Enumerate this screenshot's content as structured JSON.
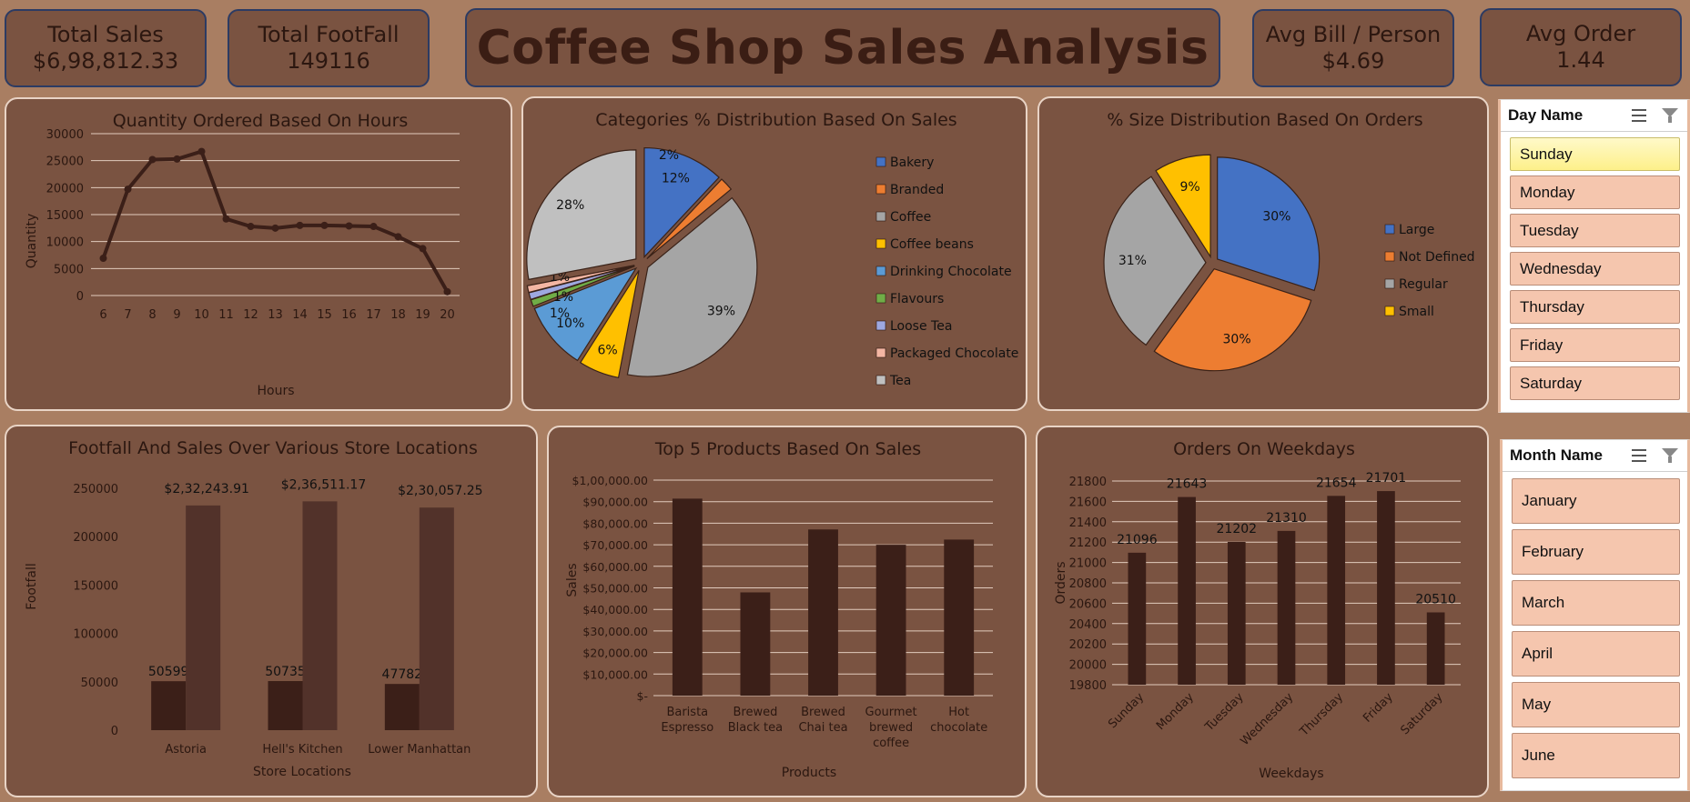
{
  "dashboard_title": "Coffee Shop Sales Analysis",
  "kpis": {
    "total_sales": {
      "label": "Total Sales",
      "value": "$6,98,812.33"
    },
    "total_footfall": {
      "label": "Total FootFall",
      "value": "149116"
    },
    "avg_bill": {
      "label": "Avg Bill / Person",
      "value": "$4.69"
    },
    "avg_order": {
      "label": "Avg Order",
      "value": "1.44"
    }
  },
  "colors": {
    "card_bg": "#7a5341",
    "dark_bar": "#3b1f18",
    "light_bar": "#52322a",
    "line": "#3b1f18",
    "pie": [
      "#4472c4",
      "#ed7d31",
      "#a5a5a5",
      "#ffc000",
      "#5b9bd5",
      "#70ad47",
      "#9ea8e0",
      "#f4b6a3",
      "#c0c0c0"
    ]
  },
  "chart_data": [
    {
      "id": "hours",
      "type": "line",
      "title": "Quantity Ordered Based On Hours",
      "xlabel": "Hours",
      "ylabel": "Quantity",
      "x": [
        6,
        7,
        8,
        9,
        10,
        11,
        12,
        13,
        14,
        15,
        16,
        17,
        18,
        19,
        20
      ],
      "values": [
        6900,
        19700,
        25200,
        25300,
        26700,
        14200,
        12800,
        12500,
        13000,
        13000,
        12900,
        12800,
        10900,
        8700,
        700
      ],
      "ylim": [
        0,
        30000
      ],
      "yticks": [
        "0",
        "5000",
        "10000",
        "15000",
        "20000",
        "25000",
        "30000"
      ],
      "grid": true
    },
    {
      "id": "categories",
      "type": "pie",
      "title": "Categories % Distribution Based On Sales",
      "categories": [
        "Bakery",
        "Branded",
        "Coffee",
        "Coffee beans",
        "Drinking Chocolate",
        "Flavours",
        "Loose Tea",
        "Packaged Chocolate",
        "Tea"
      ],
      "values": [
        12,
        2,
        39,
        6,
        10,
        1,
        1,
        1,
        28
      ],
      "labels": [
        "12%",
        "2%",
        "39%",
        "6%",
        "10%",
        "1%",
        "1%",
        "1%",
        "28%"
      ],
      "legend": "right"
    },
    {
      "id": "sizes",
      "type": "pie",
      "title": "% Size Distribution Based On Orders",
      "categories": [
        "Large",
        "Not Defined",
        "Regular",
        "Small"
      ],
      "values": [
        30,
        30,
        31,
        9
      ],
      "labels": [
        "30%",
        "30%",
        "31%",
        "9%"
      ],
      "legend": "right"
    },
    {
      "id": "locations",
      "type": "bar",
      "title": "Footfall And Sales Over Various Store Locations",
      "xlabel": "Store Locations",
      "ylabel": "Footfall",
      "categories": [
        "Astoria",
        "Hell's Kitchen",
        "Lower Manhattan"
      ],
      "series": [
        {
          "values": [
            50599,
            50735,
            47782
          ],
          "labels": [
            "50599",
            "50735",
            "47782"
          ]
        },
        {
          "values": [
            232243.91,
            236511.17,
            230057.25
          ],
          "labels": [
            "$2,32,243.91",
            "$2,36,511.17",
            "$2,30,057.25"
          ]
        }
      ],
      "ylim": [
        0,
        250000
      ],
      "yticks": [
        "0",
        "50000",
        "100000",
        "150000",
        "200000",
        "250000"
      ]
    },
    {
      "id": "products",
      "type": "bar",
      "title": "Top 5 Products Based On Sales",
      "xlabel": "Products",
      "ylabel": "Sales",
      "categories": [
        [
          "Barista",
          "Espresso"
        ],
        [
          "Brewed",
          "Black tea"
        ],
        [
          "Brewed",
          "Chai tea"
        ],
        [
          "Gourmet",
          "brewed",
          "coffee"
        ],
        [
          "Hot",
          "chocolate"
        ]
      ],
      "values": [
        91400,
        47900,
        77100,
        70000,
        72400
      ],
      "ylim": [
        0,
        100000
      ],
      "yticks": [
        "$-",
        "$10,000.00",
        "$20,000.00",
        "$30,000.00",
        "$40,000.00",
        "$50,000.00",
        "$60,000.00",
        "$70,000.00",
        "$80,000.00",
        "$90,000.00",
        "$1,00,000.00"
      ],
      "grid": true
    },
    {
      "id": "weekdays",
      "type": "bar",
      "title": "Orders On Weekdays",
      "xlabel": "Weekdays",
      "ylabel": "Orders",
      "categories": [
        "Sunday",
        "Monday",
        "Tuesday",
        "Wednesday",
        "Thursday",
        "Friday",
        "Saturday"
      ],
      "values": [
        21096,
        21643,
        21202,
        21310,
        21654,
        21701,
        20510
      ],
      "labels": [
        "21096",
        "21643",
        "21202",
        "21310",
        "21654",
        "21701",
        "20510"
      ],
      "ylim": [
        19800,
        21800
      ],
      "yticks": [
        "19800",
        "20000",
        "20200",
        "20400",
        "20600",
        "20800",
        "21000",
        "21200",
        "21400",
        "21600",
        "21800"
      ],
      "grid": true
    }
  ],
  "day_slicer": {
    "title": "Day Name",
    "items": [
      "Sunday",
      "Monday",
      "Tuesday",
      "Wednesday",
      "Thursday",
      "Friday",
      "Saturday"
    ],
    "selected": "Sunday"
  },
  "month_slicer": {
    "title": "Month Name",
    "items": [
      "January",
      "February",
      "March",
      "April",
      "May",
      "June"
    ]
  }
}
